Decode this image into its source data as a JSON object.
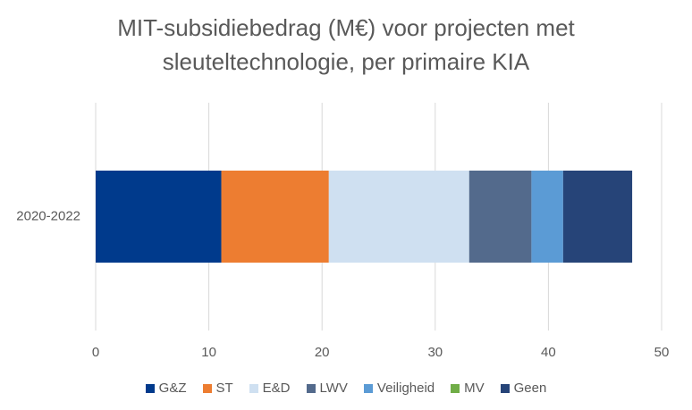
{
  "chart_data": {
    "type": "stacked-bar-horizontal",
    "title": "MIT-subsidiebedrag (M€) voor projecten met sleuteltechnologie, per primaire KIA",
    "categories": [
      "2020-2022"
    ],
    "series": [
      {
        "name": "G&Z",
        "color": "#003a8c",
        "values": [
          11.1
        ]
      },
      {
        "name": "ST",
        "color": "#ed7d31",
        "values": [
          9.5
        ]
      },
      {
        "name": "E&D",
        "color": "#cfe0f1",
        "values": [
          12.4
        ]
      },
      {
        "name": "LWV",
        "color": "#536a8c",
        "values": [
          5.5
        ]
      },
      {
        "name": "Veiligheid",
        "color": "#5b9bd5",
        "values": [
          2.8
        ]
      },
      {
        "name": "MV",
        "color": "#70ad47",
        "values": [
          0
        ]
      },
      {
        "name": "Geen",
        "color": "#264478",
        "values": [
          6.1
        ]
      }
    ],
    "xlim": [
      0,
      50
    ],
    "xticks": [
      0,
      10,
      20,
      30,
      40,
      50
    ],
    "grid": true,
    "legend": "bottom"
  }
}
